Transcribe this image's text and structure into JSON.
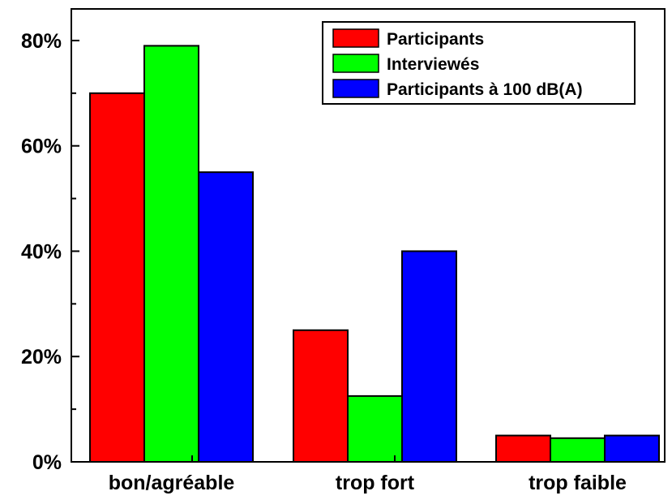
{
  "chart_data": {
    "type": "bar",
    "categories": [
      "bon/agréable",
      "trop fort",
      "trop faible"
    ],
    "series": [
      {
        "name": "Participants",
        "color": "#ff0000",
        "values": [
          70,
          25,
          5
        ]
      },
      {
        "name": "Interviewés",
        "color": "#00ff00",
        "values": [
          79,
          12.5,
          4.5
        ]
      },
      {
        "name": "Participants à 100 dB(A)",
        "color": "#0000ff",
        "values": [
          55,
          40,
          5
        ]
      }
    ],
    "y_ticks": [
      0,
      20,
      40,
      60,
      80
    ],
    "y_tick_labels": [
      "0%",
      "20%",
      "40%",
      "60%",
      "80%"
    ],
    "ylim": [
      0,
      86
    ],
    "xlabel": "",
    "ylabel": "",
    "title": "",
    "grid": false,
    "legend_position": "top-right",
    "axis_color": "#000000",
    "bar_outline_color": "#000000"
  }
}
